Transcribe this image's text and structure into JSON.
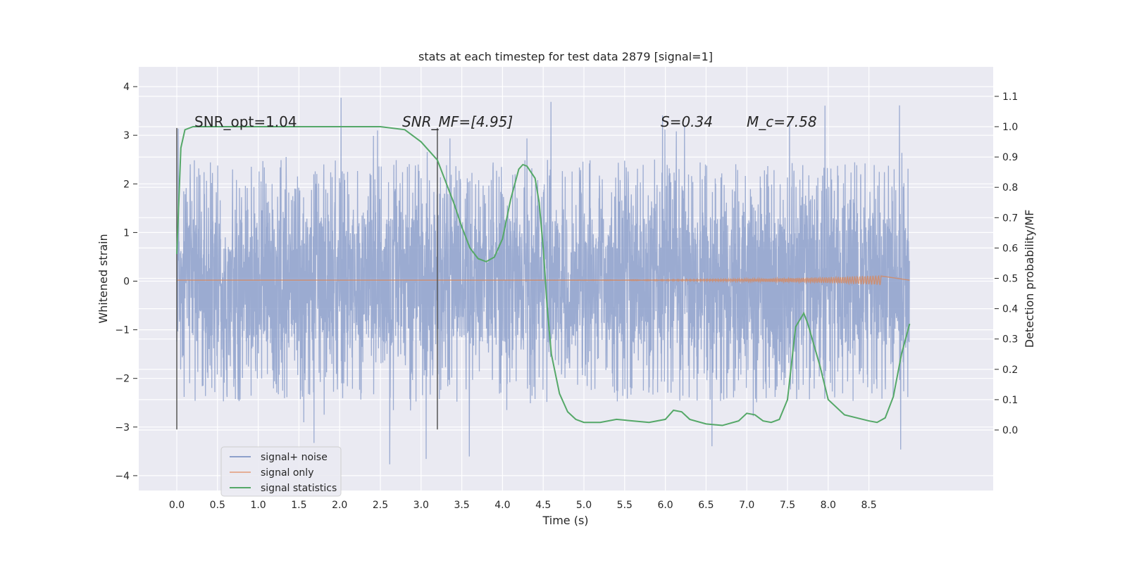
{
  "chart_data": {
    "type": "line",
    "title": "stats at each timestep for test data 2879 [signal=1]",
    "xlabel": "Time (s)",
    "ylabel": "Whitened strain",
    "ylabel_right": "Detection probability/MF",
    "xlim": [
      -0.44,
      9.5
    ],
    "ylim": [
      -4.3,
      4.4
    ],
    "ylim_right": [
      -0.2,
      1.2
    ],
    "xticks": [
      "0.0",
      "0.5",
      "1.0",
      "1.5",
      "2.0",
      "2.5",
      "3.0",
      "3.5",
      "4.0",
      "4.5",
      "5.0",
      "5.5",
      "6.0",
      "6.5",
      "7.0",
      "7.5",
      "8.0",
      "8.5"
    ],
    "yticks": [
      "−4",
      "−3",
      "−2",
      "−1",
      "0",
      "1",
      "2",
      "3",
      "4"
    ],
    "yticks_right": [
      "0.0",
      "0.1",
      "0.2",
      "0.3",
      "0.4",
      "0.5",
      "0.6",
      "0.7",
      "0.8",
      "0.9",
      "1.0",
      "1.1"
    ],
    "grid": true,
    "legend": {
      "placement": "lower-left",
      "entries": [
        {
          "label": "signal+ noise",
          "color": "#8da0cb"
        },
        {
          "label": "signal only",
          "color": "#e5ae96"
        },
        {
          "label": "signal statistics",
          "color": "#55a868"
        }
      ]
    },
    "annotations": [
      {
        "text": "SNR_opt=1.04",
        "x": 0.2,
        "y": 3.2
      },
      {
        "text": "SNR_MF=[4.95]",
        "x": 2.6,
        "y": 3.2
      },
      {
        "text": "S=0.34",
        "x": 5.6,
        "y": 3.2
      },
      {
        "text": "M_c=7.58",
        "x": 6.6,
        "y": 3.2
      }
    ],
    "vlines": [
      {
        "x": 0.0,
        "ymin": -3.05,
        "ymax": 3.15
      },
      {
        "x": 3.2,
        "ymin": -3.05,
        "ymax": 3.15
      }
    ],
    "series": [
      {
        "name": "signal+ noise",
        "axis": "left",
        "t_range": [
          0,
          9
        ],
        "typical_range": [
          -1.3,
          1.3
        ],
        "extreme_range": [
          -3.9,
          4.0
        ]
      },
      {
        "name": "signal only",
        "axis": "left",
        "t_range": [
          0,
          8.65
        ],
        "peak_amplitude": 0.1
      },
      {
        "name": "signal statistics",
        "axis": "right",
        "x": [
          0,
          0.05,
          0.1,
          0.2,
          1,
          2,
          2.5,
          2.8,
          3.0,
          3.2,
          3.4,
          3.5,
          3.6,
          3.7,
          3.8,
          3.9,
          4.0,
          4.1,
          4.2,
          4.25,
          4.3,
          4.4,
          4.45,
          4.5,
          4.55,
          4.6,
          4.7,
          4.8,
          4.9,
          5.0,
          5.2,
          5.4,
          5.6,
          5.8,
          6.0,
          6.1,
          6.2,
          6.3,
          6.5,
          6.7,
          6.9,
          7.0,
          7.1,
          7.2,
          7.3,
          7.4,
          7.5,
          7.6,
          7.7,
          7.75,
          7.9,
          8.0,
          8.2,
          8.5,
          8.6,
          8.7,
          8.8,
          8.9,
          9.0
        ],
        "y": [
          0.58,
          0.93,
          0.99,
          1.0,
          1.0,
          1.0,
          1.0,
          0.99,
          0.95,
          0.89,
          0.75,
          0.67,
          0.6,
          0.565,
          0.555,
          0.57,
          0.63,
          0.76,
          0.86,
          0.875,
          0.87,
          0.83,
          0.75,
          0.6,
          0.4,
          0.25,
          0.12,
          0.06,
          0.035,
          0.025,
          0.025,
          0.035,
          0.03,
          0.025,
          0.035,
          0.065,
          0.06,
          0.035,
          0.02,
          0.015,
          0.03,
          0.055,
          0.05,
          0.03,
          0.025,
          0.035,
          0.1,
          0.34,
          0.385,
          0.35,
          0.21,
          0.1,
          0.05,
          0.03,
          0.025,
          0.04,
          0.11,
          0.25,
          0.35
        ]
      }
    ]
  }
}
